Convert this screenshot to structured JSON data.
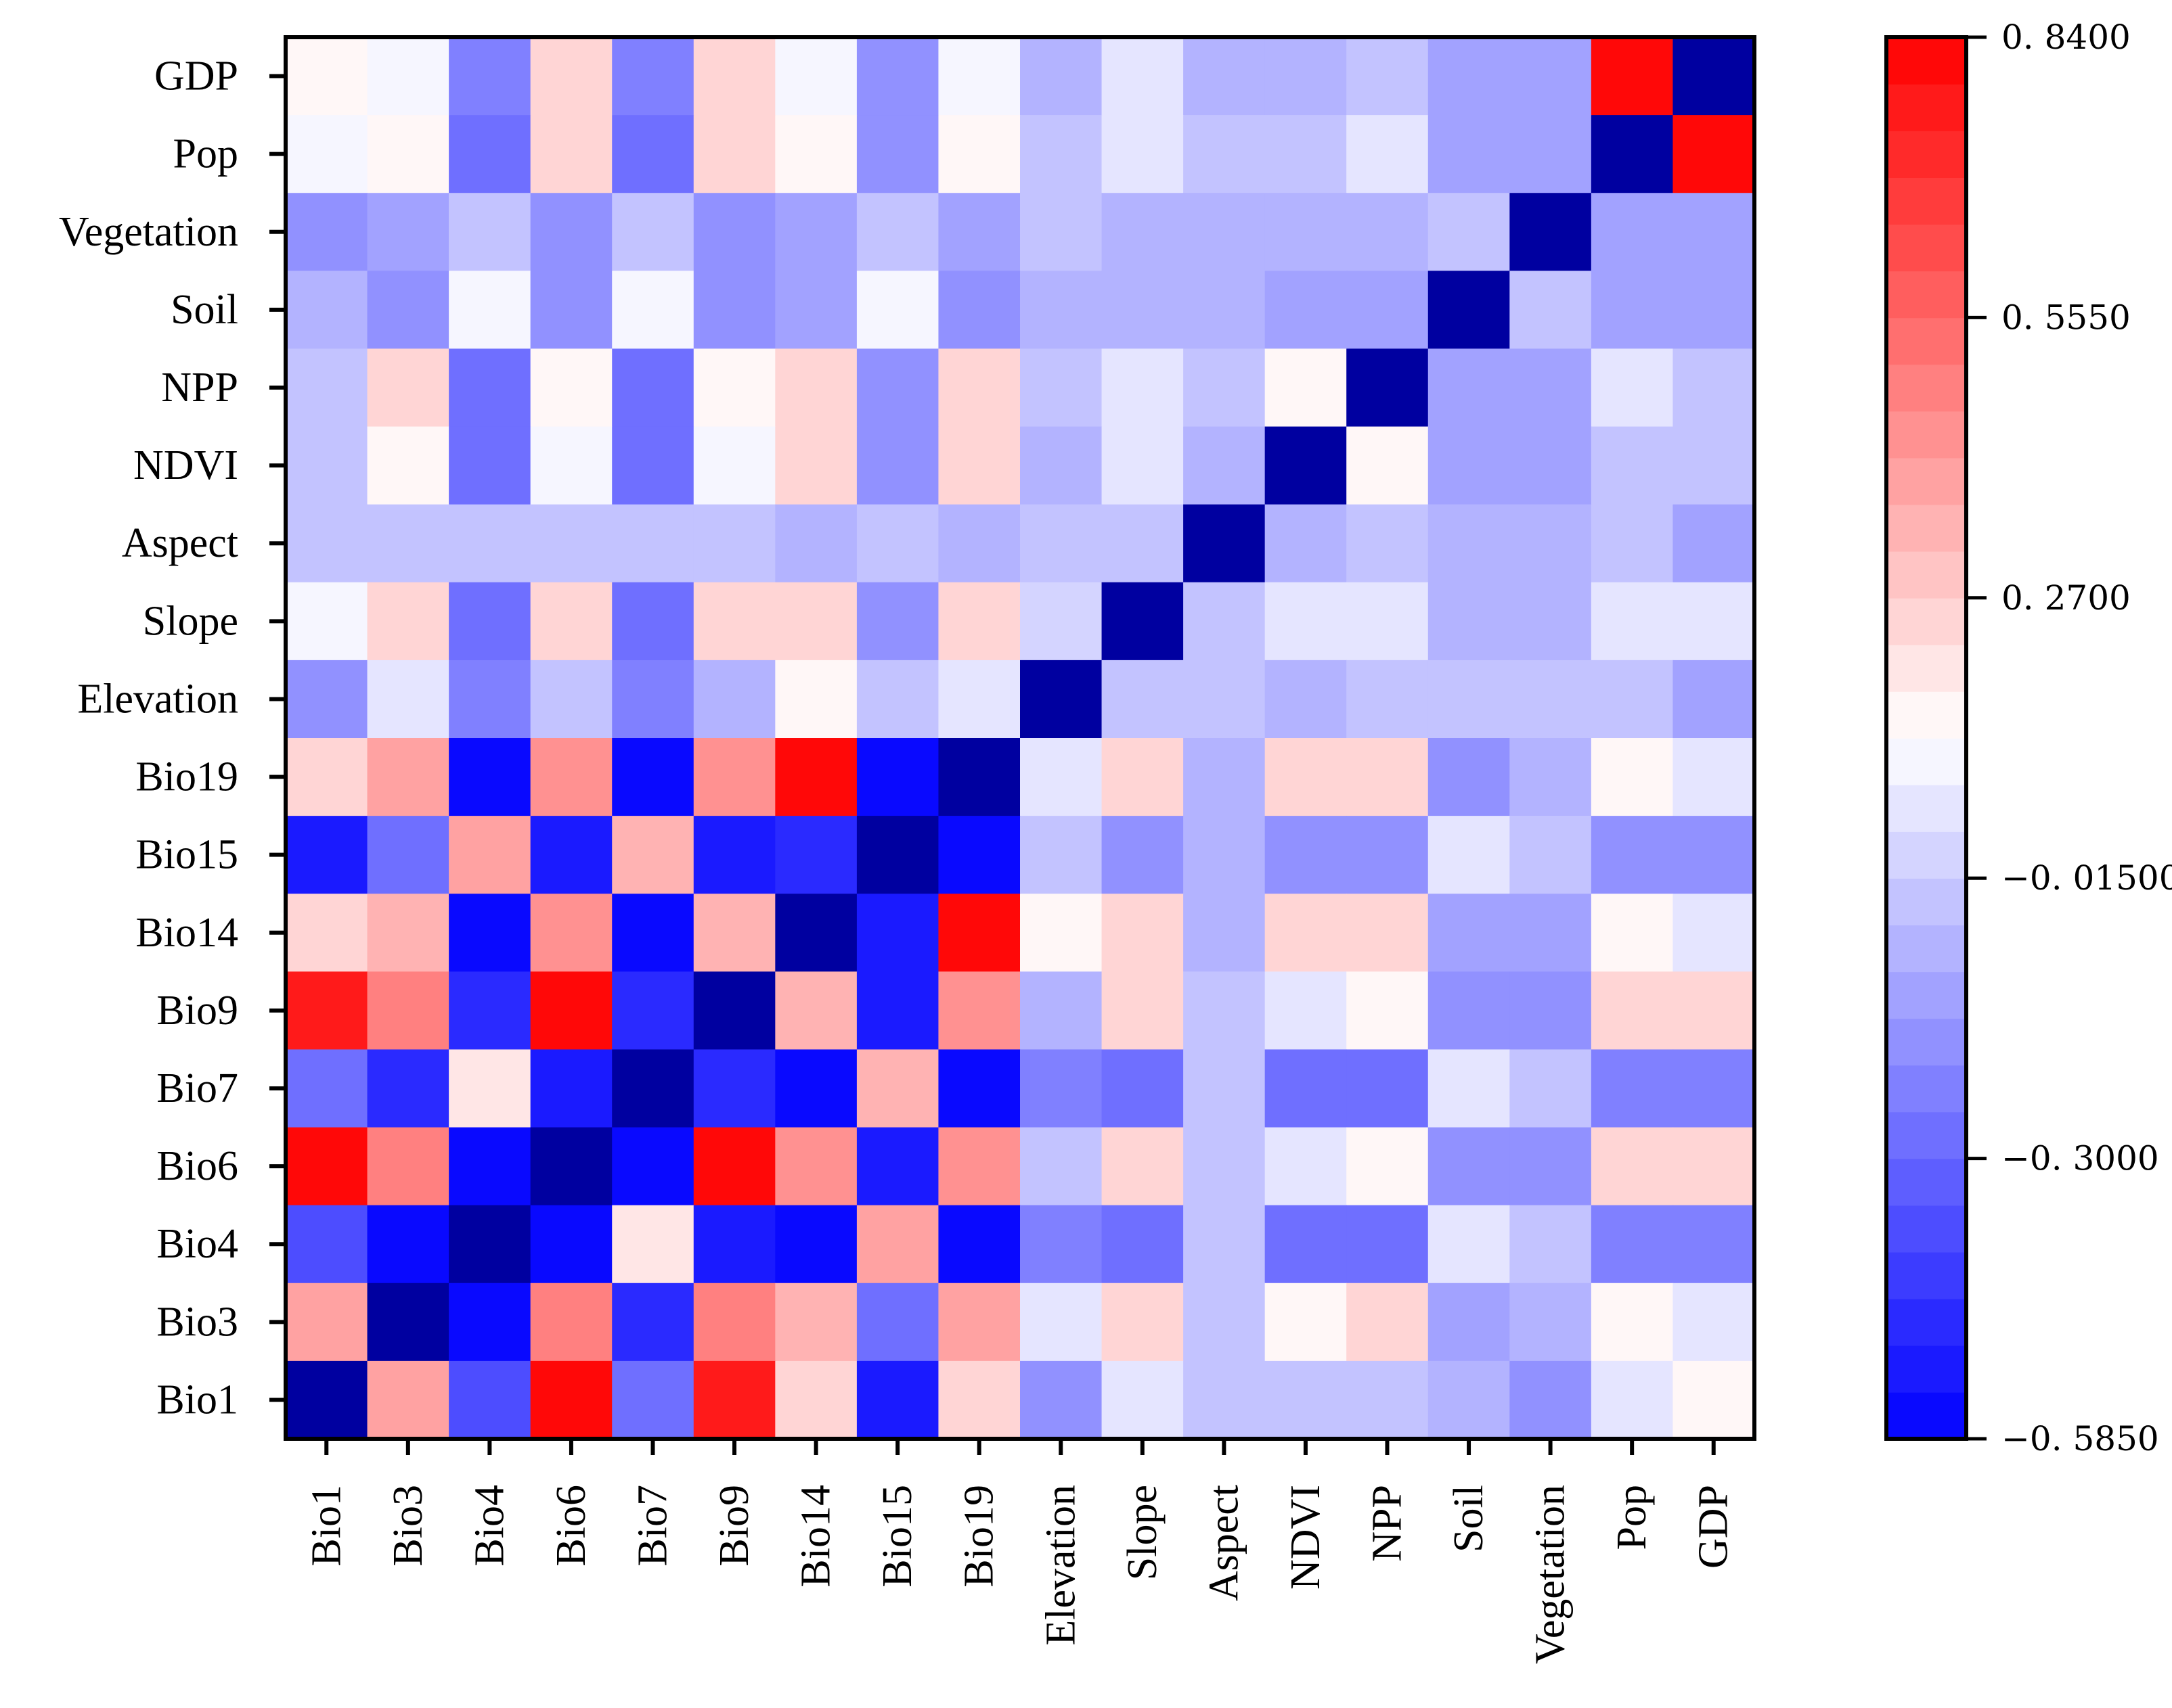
{
  "chart_data": {
    "type": "heatmap",
    "x_labels": [
      "Bio1",
      "Bio3",
      "Bio4",
      "Bio6",
      "Bio7",
      "Bio9",
      "Bio14",
      "Bio15",
      "Bio19",
      "Elevation",
      "Slope",
      "Aspect",
      "NDVI",
      "NPP",
      "Soil",
      "Vegetation",
      "Pop",
      "GDP"
    ],
    "y_labels_top_to_bottom": [
      "GDP",
      "Pop",
      "Vegetation",
      "Soil",
      "NPP",
      "NDVI",
      "Aspect",
      "Slope",
      "Elevation",
      "Bio19",
      "Bio15",
      "Bio14",
      "Bio9",
      "Bio7",
      "Bio6",
      "Bio4",
      "Bio3",
      "Bio1"
    ],
    "values": [
      [
        0.16,
        0.08,
        -0.22,
        0.26,
        -0.22,
        0.26,
        0.08,
        -0.17,
        0.08,
        -0.11,
        0.07,
        -0.11,
        -0.07,
        -0.03,
        -0.13,
        -0.13,
        0.82,
        -0.585
      ],
      [
        0.08,
        0.16,
        -0.3,
        0.26,
        -0.3,
        0.26,
        0.16,
        -0.17,
        0.16,
        -0.06,
        0.07,
        -0.06,
        -0.03,
        0.07,
        -0.13,
        -0.13,
        -0.585,
        0.82
      ],
      [
        -0.17,
        -0.13,
        -0.03,
        -0.17,
        -0.03,
        -0.17,
        -0.13,
        -0.03,
        -0.13,
        -0.03,
        -0.11,
        -0.11,
        -0.11,
        -0.11,
        -0.06,
        -0.585,
        -0.13,
        -0.13
      ],
      [
        -0.11,
        -0.17,
        0.1,
        -0.17,
        0.1,
        -0.17,
        -0.13,
        0.1,
        -0.17,
        -0.08,
        -0.08,
        -0.08,
        -0.13,
        -0.13,
        -0.585,
        -0.06,
        -0.13,
        -0.13
      ],
      [
        -0.03,
        0.24,
        -0.3,
        0.16,
        -0.3,
        0.16,
        0.24,
        -0.17,
        0.24,
        -0.03,
        0.07,
        -0.06,
        0.16,
        -0.585,
        -0.13,
        -0.13,
        0.07,
        -0.03
      ],
      [
        -0.06,
        0.16,
        -0.3,
        0.08,
        -0.3,
        0.08,
        0.24,
        -0.17,
        0.24,
        -0.11,
        0.07,
        -0.11,
        -0.585,
        0.16,
        -0.13,
        -0.13,
        -0.03,
        -0.06
      ],
      [
        -0.06,
        -0.06,
        -0.03,
        -0.06,
        -0.03,
        -0.06,
        -0.11,
        -0.06,
        -0.11,
        -0.06,
        -0.06,
        -0.585,
        -0.11,
        -0.06,
        -0.08,
        -0.11,
        -0.06,
        -0.13
      ],
      [
        0.08,
        0.24,
        -0.27,
        0.24,
        -0.27,
        0.24,
        0.24,
        -0.2,
        0.24,
        0.02,
        -0.585,
        -0.06,
        0.07,
        0.07,
        -0.08,
        -0.11,
        0.07,
        0.07
      ],
      [
        -0.17,
        0.07,
        -0.25,
        -0.06,
        -0.25,
        -0.11,
        0.16,
        -0.06,
        0.07,
        -0.585,
        -0.03,
        -0.06,
        -0.11,
        -0.03,
        -0.06,
        -0.03,
        -0.06,
        -0.13
      ],
      [
        0.24,
        0.4,
        -0.55,
        0.45,
        -0.58,
        0.45,
        0.84,
        -0.58,
        -0.585,
        0.07,
        0.24,
        -0.11,
        0.24,
        0.24,
        -0.17,
        -0.11,
        0.16,
        0.07
      ],
      [
        -0.52,
        -0.3,
        0.4,
        -0.52,
        0.35,
        -0.52,
        -0.47,
        -0.585,
        -0.58,
        -0.06,
        -0.2,
        -0.08,
        -0.17,
        -0.17,
        0.07,
        -0.03,
        -0.17,
        -0.17
      ],
      [
        0.24,
        0.35,
        -0.58,
        0.45,
        -0.58,
        0.35,
        -0.585,
        -0.5,
        0.84,
        0.16,
        0.24,
        -0.11,
        0.24,
        0.24,
        -0.13,
        -0.13,
        0.16,
        0.07
      ],
      [
        0.78,
        0.5,
        -0.48,
        0.8,
        -0.47,
        -0.585,
        0.35,
        -0.52,
        0.45,
        -0.11,
        0.24,
        -0.06,
        0.07,
        0.16,
        -0.17,
        -0.17,
        0.24,
        0.24
      ],
      [
        -0.3,
        -0.45,
        0.2,
        -0.52,
        -0.585,
        -0.45,
        -0.58,
        0.35,
        -0.58,
        -0.25,
        -0.27,
        -0.03,
        -0.3,
        -0.3,
        0.07,
        -0.03,
        -0.25,
        -0.22
      ],
      [
        0.8,
        0.5,
        -0.56,
        -0.585,
        -0.55,
        0.8,
        0.45,
        -0.52,
        0.45,
        -0.06,
        0.24,
        -0.06,
        0.07,
        0.16,
        -0.17,
        -0.17,
        0.24,
        0.24
      ],
      [
        -0.35,
        -0.55,
        -0.585,
        -0.56,
        0.2,
        -0.5,
        -0.58,
        0.4,
        -0.55,
        -0.25,
        -0.27,
        -0.03,
        -0.3,
        -0.3,
        0.07,
        -0.03,
        -0.25,
        -0.22
      ],
      [
        0.4,
        -0.585,
        -0.55,
        0.5,
        -0.45,
        0.5,
        0.35,
        -0.3,
        0.4,
        0.07,
        0.24,
        -0.06,
        0.16,
        0.24,
        -0.13,
        -0.11,
        0.16,
        0.07
      ],
      [
        -0.585,
        0.4,
        -0.35,
        0.8,
        -0.3,
        0.78,
        0.24,
        -0.52,
        0.24,
        -0.17,
        0.07,
        -0.06,
        -0.06,
        -0.03,
        -0.11,
        -0.17,
        0.07,
        0.16
      ]
    ],
    "colorbar": {
      "min": -0.585,
      "max": 0.84,
      "ticks": [
        0.84,
        0.555,
        0.27,
        -0.015,
        -0.3,
        -0.585
      ],
      "tick_labels": [
        "0. 8400",
        "0. 5550",
        "0. 2700",
        "−0. 01500",
        "−0. 3000",
        "−0. 5850"
      ],
      "colors": {
        "low": "#0000ff",
        "mid": "#ffffff",
        "high": "#ff0000",
        "diagonal": "#0000a0"
      },
      "levels": 30
    },
    "title": "",
    "xlabel": "",
    "ylabel": ""
  }
}
